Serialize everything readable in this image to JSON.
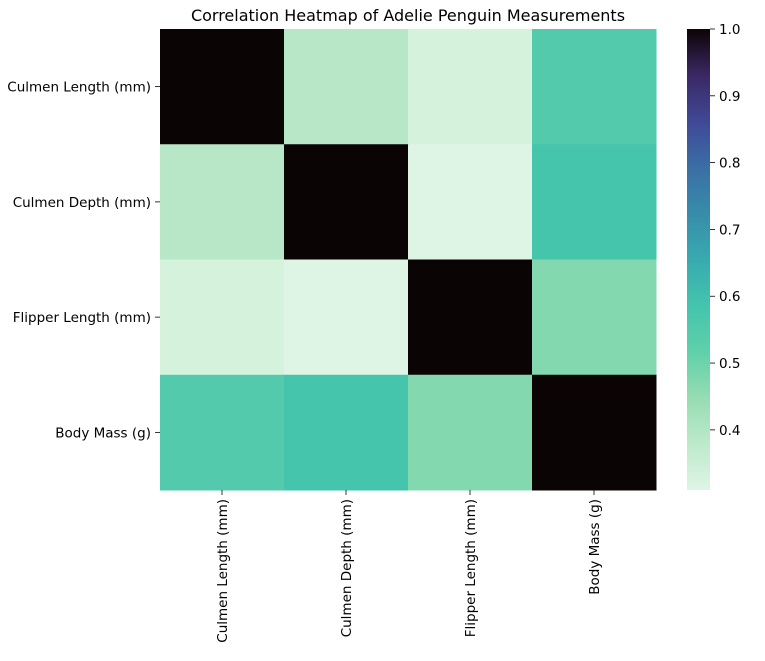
{
  "chart_data": {
    "type": "heatmap",
    "title": "Correlation Heatmap of Adelie Penguin Measurements",
    "xlabel": "",
    "ylabel": "",
    "x_categories": [
      "Culmen Length (mm)",
      "Culmen Depth (mm)",
      "Flipper Length (mm)",
      "Body Mass (g)"
    ],
    "y_categories": [
      "Culmen Length (mm)",
      "Culmen Depth (mm)",
      "Flipper Length (mm)",
      "Body Mass (g)"
    ],
    "values": [
      [
        1.0,
        0.39,
        0.33,
        0.55
      ],
      [
        0.39,
        1.0,
        0.31,
        0.58
      ],
      [
        0.33,
        0.31,
        1.0,
        0.47
      ],
      [
        0.55,
        0.58,
        0.47,
        1.0
      ]
    ],
    "colorbar": {
      "min": 0.31,
      "max": 1.0,
      "ticks": [
        "0.4",
        "0.5",
        "0.6",
        "0.7",
        "0.8",
        "0.9",
        "1.0"
      ],
      "colormap": "mako_r"
    },
    "annotations": false,
    "grid": false
  }
}
